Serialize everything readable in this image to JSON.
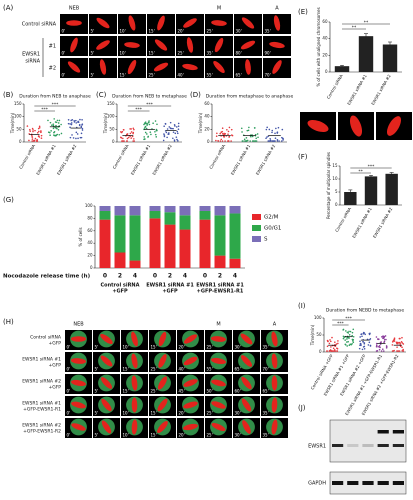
{
  "panel_a": {
    "label": "(A)",
    "phases": [
      "NEB",
      "M",
      "A"
    ],
    "group_label": [
      "EWSR1",
      "siRNA"
    ],
    "rows": [
      {
        "label": "Control siRNA",
        "times": [
          "0'",
          "5'",
          "10'",
          "15'",
          "20'",
          "25'",
          "30'",
          "35'"
        ]
      },
      {
        "label": "#1",
        "times": [
          "0'",
          "5'",
          "10'",
          "15'",
          "25'",
          "35'",
          "80'",
          "90'"
        ]
      },
      {
        "label": "#2",
        "times": [
          "0'",
          "5'",
          "15'",
          "25'",
          "40'",
          "55'",
          "65'",
          "70'"
        ]
      }
    ]
  },
  "panel_h": {
    "label": "(H)",
    "phases": [
      "NEB",
      "M",
      "A"
    ],
    "rows": [
      {
        "label": [
          "Control siRNA",
          "+GFP"
        ],
        "times": [
          "0'",
          "5'",
          "10'",
          "15'",
          "20'",
          "25'",
          "30'",
          "35'"
        ]
      },
      {
        "label": [
          "EWSR1 siRNA #1",
          "+GFP"
        ],
        "times": [
          "0'",
          "5'",
          "15'",
          "25'",
          "40'",
          "55'",
          "65'",
          "70'"
        ]
      },
      {
        "label": [
          "EWSR1 siRNA #2",
          "+GFP"
        ],
        "times": [
          "0'",
          "5'",
          "15'",
          "25'",
          "45'",
          "50'",
          "60'",
          "65'"
        ]
      },
      {
        "label": [
          "EWSR1 siRNA #1",
          "+GFP-EWSR1-R1"
        ],
        "times": [
          "0'",
          "5'",
          "10'",
          "15'",
          "20'",
          "25'",
          "30'",
          "35'"
        ]
      },
      {
        "label": [
          "EWSR1 siRNA #2",
          "+GFP-EWSR1-R2"
        ],
        "times": [
          "0'",
          "5'",
          "10'",
          "15'",
          "20'",
          "25'",
          "30'",
          "35'"
        ]
      }
    ]
  },
  "panel_j": {
    "label": "(J)",
    "bands": [
      "EWSR1",
      "GAPDH"
    ]
  },
  "chart_data": [
    {
      "type": "dot",
      "label": "(B)",
      "title": "Duration from NEB to anaphase",
      "y_label": "Time(min)",
      "categories": [
        "Control siRNA",
        "EWSR1 siRNA #1",
        "EWSR1 siRNA #2"
      ],
      "values": [
        30,
        60,
        55
      ],
      "colors": [
        "#e8383d",
        "#2e9e5e",
        "#4355a8"
      ],
      "ylim": [
        0,
        150
      ],
      "yticks": [
        0,
        50,
        100,
        150
      ],
      "annotations": [
        "***",
        "***"
      ]
    },
    {
      "type": "dot",
      "label": "(C)",
      "title": "Duration from NEB to metaphase",
      "y_label": "Time(min)",
      "categories": [
        "Control siRNA",
        "EWSR1 siRNA #1",
        "EWSR1 siRNA #2"
      ],
      "values": [
        25,
        50,
        45
      ],
      "colors": [
        "#e8383d",
        "#2e9e5e",
        "#4355a8"
      ],
      "ylim": [
        0,
        150
      ],
      "yticks": [
        0,
        50,
        100,
        150
      ],
      "annotations": [
        "***",
        "***"
      ]
    },
    {
      "type": "dot",
      "label": "(D)",
      "title": "Duration from metaphase to anaphase",
      "y_label": "Time(min)",
      "categories": [
        "Control siRNA",
        "EWSR1 siRNA #1",
        "EWSR1 siRNA #2"
      ],
      "values": [
        10,
        10,
        10
      ],
      "colors": [
        "#e8383d",
        "#2e9e5e",
        "#4355a8"
      ],
      "ylim": [
        0,
        60
      ],
      "yticks": [
        0,
        20,
        40,
        60
      ]
    },
    {
      "type": "bar",
      "label": "(E)",
      "y_label": "% of cells with unaligned chromosomes",
      "categories": [
        "Control siRNA",
        "EWSR1 siRNA #1",
        "EWSR1 siRNA #2"
      ],
      "values": [
        7,
        43,
        33
      ],
      "errors": [
        1,
        3,
        3
      ],
      "color": "#222222",
      "ylim": [
        0,
        60
      ],
      "yticks": [
        0,
        20,
        40,
        60
      ],
      "annotations": [
        "**",
        "**"
      ]
    },
    {
      "type": "bar",
      "label": "(F)",
      "y_label": "Percentage of multipolar spindles",
      "categories": [
        "Control siRNA",
        "EWSR1 siRNA #1",
        "EWSR1 siRNA #2"
      ],
      "values": [
        5,
        11,
        12
      ],
      "errors": [
        0.8,
        0.4,
        0.5
      ],
      "color": "#222222",
      "ylim": [
        0,
        15
      ],
      "yticks": [
        0,
        5,
        10,
        15
      ],
      "annotations": [
        "**",
        "***"
      ]
    },
    {
      "type": "stacked",
      "label": "(G)",
      "y_label": "% of cells",
      "x_label": "Nocodazole release time (h)",
      "categories": [
        "0",
        "2",
        "4",
        "0",
        "2",
        "4",
        "0",
        "2",
        "4"
      ],
      "groups": [
        [
          "Control siRNA",
          "+GFP"
        ],
        [
          "EWSR1 siRNA #1",
          "+GFP"
        ],
        [
          "EWSR1 siRNA #1",
          "+GFP-EWSR1-R1"
        ]
      ],
      "series": [
        {
          "name": "G2/M",
          "color": "#e8262b",
          "values": [
            78,
            25,
            12,
            80,
            70,
            62,
            78,
            20,
            15
          ]
        },
        {
          "name": "G0/G1",
          "color": "#2ea84a",
          "values": [
            14,
            60,
            73,
            12,
            20,
            23,
            14,
            65,
            73
          ]
        },
        {
          "name": "S",
          "color": "#7b6fb8",
          "values": [
            8,
            15,
            15,
            8,
            10,
            15,
            8,
            15,
            12
          ]
        }
      ],
      "ylim": [
        0,
        100
      ],
      "yticks": [
        0,
        20,
        40,
        60,
        80,
        100
      ]
    },
    {
      "type": "dot",
      "label": "(I)",
      "title": "Duration from NEBD to metaphase",
      "y_label": "Time(min)",
      "categories": [
        "Control siRNA +GFP",
        "EWSR1 siRNA #1 +GFP",
        "EWSR1 siRNA #2 +GFP",
        "EWSR1 siRNA #1 +GFP-EWSR1-R1",
        "EWSR1 siRNA #2 +GFP-EWSR1-R2"
      ],
      "values": [
        20,
        45,
        35,
        25,
        20
      ],
      "colors": [
        "#e8383d",
        "#2e9e5e",
        "#4355a8",
        "#8a3d9c",
        "#e8383d"
      ],
      "ylim": [
        0,
        100
      ],
      "yticks": [
        0,
        50,
        100
      ],
      "annotations": [
        "***",
        "***"
      ]
    }
  ]
}
